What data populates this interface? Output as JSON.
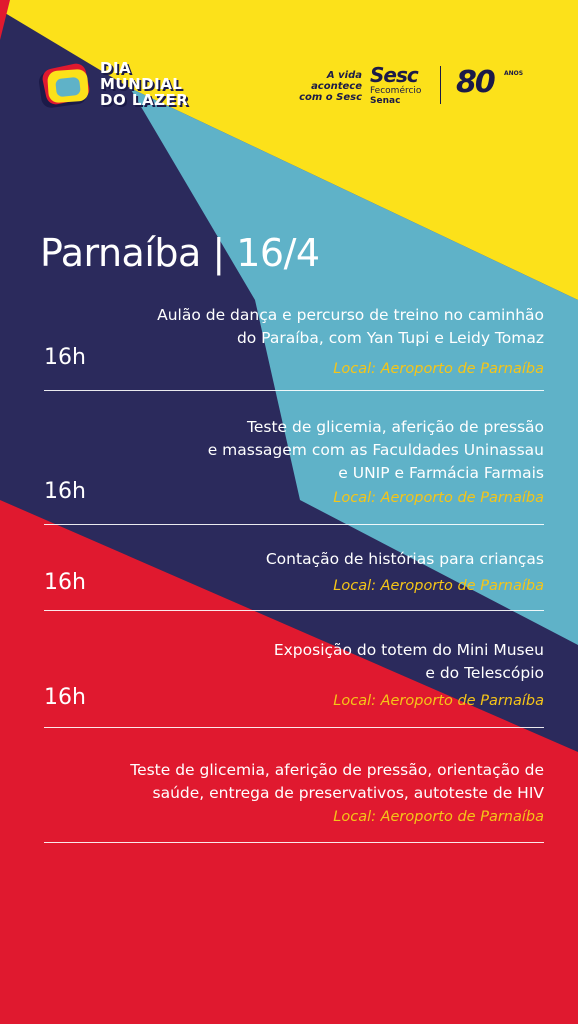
{
  "header": {
    "event_logo": {
      "line1": "DIA",
      "line2": "MUNDIAL",
      "line3": "DO LAZER"
    },
    "tagline_line1": "A vida",
    "tagline_line2": "acontece",
    "tagline_line3": "com o Sesc",
    "sesc": "Sesc",
    "fecomercio": "Fecomércio",
    "senac": "Senac",
    "anniversary": "80",
    "anniversary_unit": "ANOS"
  },
  "title": "Parnaíba | 16/4",
  "events": [
    {
      "time": "16h",
      "desc_lines": [
        "Aulão de dança e percurso de treino no caminhão",
        "do Paraíba, com Yan Tupi e Leidy Tomaz"
      ],
      "local": "Local: Aeroporto de Parnaíba"
    },
    {
      "time": "16h",
      "desc_lines": [
        "Teste de glicemia, aferição de pressão",
        "e massagem com as Faculdades Uninassau",
        "e UNIP e Farmácia Farmais"
      ],
      "local": "Local: Aeroporto de Parnaíba"
    },
    {
      "time": "16h",
      "desc_lines": [
        "Contação de histórias para crianças"
      ],
      "local": "Local: Aeroporto de Parnaíba"
    },
    {
      "time": "16h",
      "desc_lines": [
        "Exposição do totem do Mini Museu",
        "e do Telescópio"
      ],
      "local": "Local: Aeroporto de Parnaíba"
    },
    {
      "time": "",
      "desc_lines": [
        "Teste de glicemia, aferição de pressão, orientação de",
        "saúde, entrega de preservativos, autoteste de HIV"
      ],
      "local": "Local: Aeroporto de Parnaíba"
    }
  ],
  "colors": {
    "navy": "#2b2a5c",
    "yellow": "#fce11a",
    "teal": "#5fb2c8",
    "red": "#e0192f",
    "gold_text": "#f5c518",
    "white": "#ffffff"
  }
}
